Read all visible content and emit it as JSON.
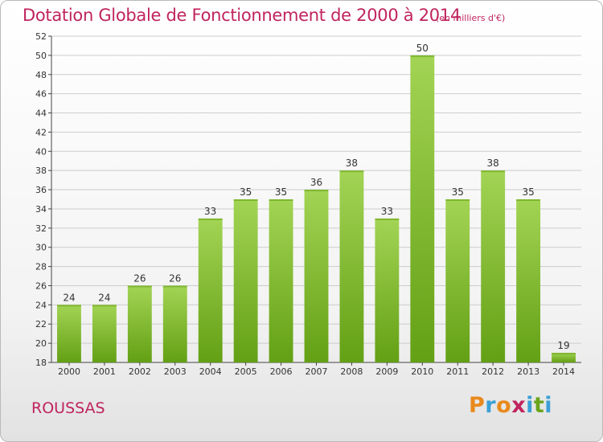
{
  "header": {
    "title": "Dotation Globale de Fonctionnement de 2000 à 2014",
    "unit": "(en milliers d'€)"
  },
  "footer": {
    "commune": "ROUSSAS",
    "brand": [
      "P",
      "r",
      "o",
      "x",
      "i",
      "t",
      "i"
    ],
    "brand_colors": [
      "#e98a1d",
      "#3a9fd6",
      "#e98a1d",
      "#c0245e",
      "#3a9fd6",
      "#6aa51c",
      "#3a9fd6"
    ]
  },
  "colors": {
    "title": "#c0245e",
    "bar_light": "#a3d455",
    "bar_dark": "#63a014",
    "grid": "#cccccc",
    "axis": "#444444"
  },
  "chart_data": {
    "type": "bar",
    "title": "Dotation Globale de Fonctionnement de 2000 à 2014",
    "subtitle": "(en milliers d'€)",
    "categories": [
      "2000",
      "2001",
      "2002",
      "2003",
      "2004",
      "2005",
      "2006",
      "2007",
      "2008",
      "2009",
      "2010",
      "2011",
      "2012",
      "2013",
      "2014"
    ],
    "values": [
      24,
      24,
      26,
      26,
      33,
      35,
      35,
      36,
      38,
      33,
      50,
      35,
      38,
      35,
      19
    ],
    "ylim": [
      18,
      52
    ],
    "yticks": [
      18,
      20,
      22,
      24,
      26,
      28,
      30,
      32,
      34,
      36,
      38,
      40,
      42,
      44,
      46,
      48,
      50,
      52
    ],
    "grid": true,
    "legend": "none"
  }
}
